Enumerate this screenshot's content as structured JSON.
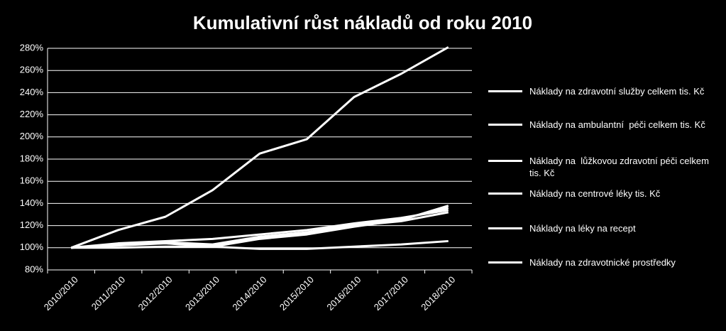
{
  "chart_data": {
    "type": "line",
    "title": "Kumulativní růst nákladů od roku 2010",
    "categories": [
      "2010/2010",
      "2011/2010",
      "2012/2010",
      "2013/2010",
      "2014/2010",
      "2015/2010",
      "2016/2010",
      "2017/2010",
      "2018/2010"
    ],
    "series": [
      {
        "name": "Náklady na zdravotní služby celkem tis. Kč",
        "color": "#ffffff",
        "values": [
          100,
          104,
          106,
          108,
          112,
          116,
          122,
          127,
          134
        ]
      },
      {
        "name": "Náklady na ambulantní  péči celkem tis. Kč",
        "color": "#ffffff",
        "values": [
          100,
          103,
          105,
          103,
          110,
          114,
          121,
          126,
          136
        ]
      },
      {
        "name": "Náklady na  lůžkovou zdravotní péči celkem tis. Kč",
        "color": "#ffffff",
        "values": [
          100,
          103,
          104,
          102,
          109,
          113,
          120,
          124,
          132
        ]
      },
      {
        "name": "Náklady na centrové léky tis. Kč",
        "color": "#ffffff",
        "values": [
          100,
          116,
          128,
          152,
          185,
          198,
          236,
          257,
          281
        ]
      },
      {
        "name": "Náklady na léky na recept",
        "color": "#ffffff",
        "values": [
          100,
          100,
          101,
          101,
          99,
          99,
          101,
          103,
          106
        ]
      },
      {
        "name": "Náklady na zdravotnické prostředky",
        "color": "#ffffff",
        "values": [
          100,
          102,
          104,
          101,
          108,
          112,
          119,
          125,
          138
        ]
      }
    ],
    "ylim": [
      80,
      280
    ],
    "yticks": [
      {
        "value": 80,
        "label": "80%"
      },
      {
        "value": 100,
        "label": "100%"
      },
      {
        "value": 120,
        "label": "120%"
      },
      {
        "value": 140,
        "label": "140%"
      },
      {
        "value": 160,
        "label": "160%"
      },
      {
        "value": 180,
        "label": "180%"
      },
      {
        "value": 200,
        "label": "200%"
      },
      {
        "value": 220,
        "label": "220%"
      },
      {
        "value": 240,
        "label": "240%"
      },
      {
        "value": 260,
        "label": "260%"
      },
      {
        "value": 280,
        "label": "280%"
      }
    ],
    "grid": true
  }
}
